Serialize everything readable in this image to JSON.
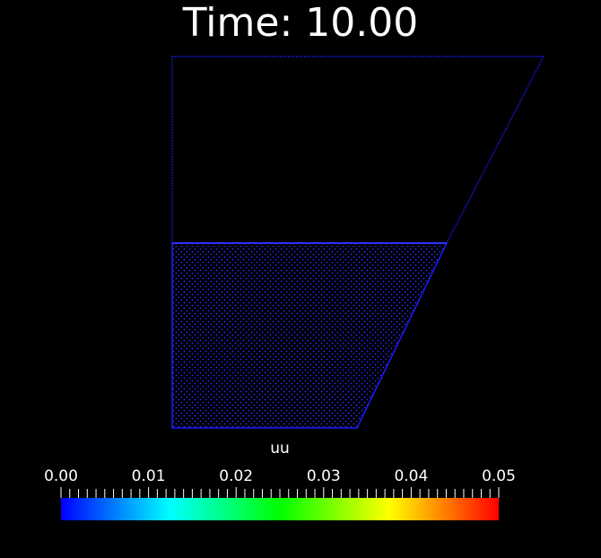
{
  "title": "Time: 10.00",
  "colorbar": {
    "label": "uu",
    "tick_labels": [
      "0.00",
      "0.01",
      "0.02",
      "0.03",
      "0.04",
      "0.05"
    ],
    "range": [
      0.0,
      0.05
    ],
    "colormap": [
      "#0000ff",
      "#00ffff",
      "#00ff00",
      "#ffff00",
      "#ff0000"
    ]
  },
  "mesh": {
    "color": "#1a1aff",
    "background": "#000000"
  }
}
